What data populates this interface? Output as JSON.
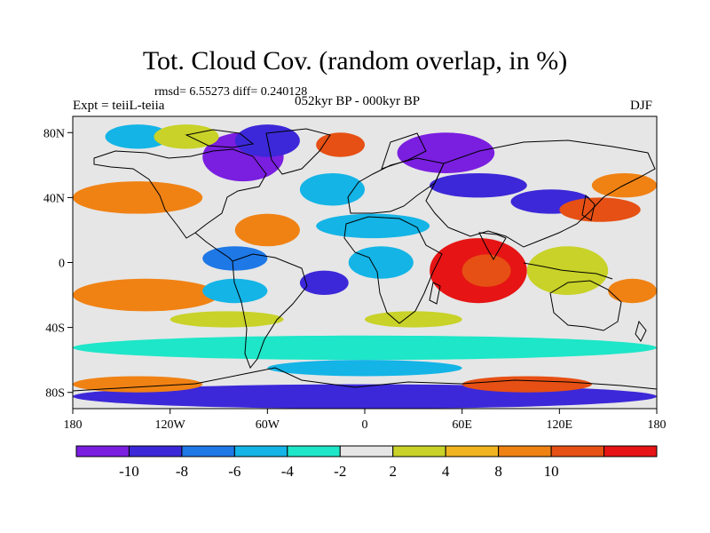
{
  "title": "Tot. Cloud Cov. (random overlap, in %)",
  "stats": "rmsd= 6.55273 diff= 0.240128",
  "left_label": "Expt = teiiL-teiia",
  "center_label": "052kyr BP - 000kyr BP",
  "right_label": "DJF",
  "chart_data": {
    "type": "heatmap",
    "x_ticks": [
      "180",
      "120W",
      "60W",
      "0",
      "60E",
      "120E",
      "180"
    ],
    "x_tick_values": [
      -180,
      -120,
      -60,
      0,
      60,
      120,
      180
    ],
    "y_ticks": [
      "80N",
      "40N",
      "0",
      "40S",
      "80S"
    ],
    "y_tick_values": [
      80,
      40,
      0,
      -40,
      -80
    ],
    "xlim": [
      -180,
      180
    ],
    "ylim": [
      -90,
      90
    ],
    "colorbar": {
      "labels": [
        "-10",
        "-8",
        "-6",
        "-4",
        "-2",
        "2",
        "4",
        "8",
        "10"
      ],
      "colors": [
        "#7a1ee0",
        "#3c28d8",
        "#1e78e6",
        "#14b4e6",
        "#1ee6c8",
        "#e6e6e6",
        "#c8d228",
        "#f0b41e",
        "#f08214",
        "#e65014",
        "#e61414"
      ]
    },
    "regions": [
      {
        "lon": [
          -100,
          -50
        ],
        "lat": [
          50,
          80
        ],
        "level": 0
      },
      {
        "lon": [
          -80,
          -40
        ],
        "lat": [
          65,
          85
        ],
        "level": 1
      },
      {
        "lon": [
          -160,
          -120
        ],
        "lat": [
          70,
          85
        ],
        "level": 3
      },
      {
        "lon": [
          -130,
          -90
        ],
        "lat": [
          70,
          85
        ],
        "level": 6
      },
      {
        "lon": [
          -30,
          0
        ],
        "lat": [
          65,
          80
        ],
        "level": 9
      },
      {
        "lon": [
          20,
          80
        ],
        "lat": [
          55,
          80
        ],
        "level": 0
      },
      {
        "lon": [
          40,
          100
        ],
        "lat": [
          40,
          55
        ],
        "level": 1
      },
      {
        "lon": [
          -40,
          0
        ],
        "lat": [
          35,
          55
        ],
        "level": 3
      },
      {
        "lon": [
          90,
          140
        ],
        "lat": [
          30,
          45
        ],
        "level": 1
      },
      {
        "lon": [
          120,
          170
        ],
        "lat": [
          25,
          40
        ],
        "level": 9
      },
      {
        "lon": [
          140,
          180
        ],
        "lat": [
          40,
          55
        ],
        "level": 8
      },
      {
        "lon": [
          -180,
          -100
        ],
        "lat": [
          30,
          50
        ],
        "level": 8
      },
      {
        "lon": [
          -180,
          -110
        ],
        "lat": [
          15,
          30
        ],
        "level": 5
      },
      {
        "lon": [
          -80,
          -40
        ],
        "lat": [
          10,
          30
        ],
        "level": 8
      },
      {
        "lon": [
          -30,
          40
        ],
        "lat": [
          15,
          30
        ],
        "level": 3
      },
      {
        "lon": [
          40,
          100
        ],
        "lat": [
          -25,
          15
        ],
        "level": 10
      },
      {
        "lon": [
          60,
          90
        ],
        "lat": [
          -15,
          5
        ],
        "level": 9
      },
      {
        "lon": [
          -100,
          -60
        ],
        "lat": [
          -5,
          10
        ],
        "level": 2
      },
      {
        "lon": [
          -40,
          -10
        ],
        "lat": [
          -20,
          -5
        ],
        "level": 1
      },
      {
        "lon": [
          -10,
          30
        ],
        "lat": [
          -10,
          10
        ],
        "level": 3
      },
      {
        "lon": [
          100,
          150
        ],
        "lat": [
          -20,
          10
        ],
        "level": 6
      },
      {
        "lon": [
          -180,
          -90
        ],
        "lat": [
          -30,
          -10
        ],
        "level": 8
      },
      {
        "lon": [
          -100,
          -60
        ],
        "lat": [
          -25,
          -10
        ],
        "level": 3
      },
      {
        "lon": [
          150,
          180
        ],
        "lat": [
          -25,
          -10
        ],
        "level": 8
      },
      {
        "lon": [
          -120,
          -50
        ],
        "lat": [
          -40,
          -30
        ],
        "level": 6
      },
      {
        "lon": [
          0,
          60
        ],
        "lat": [
          -40,
          -30
        ],
        "level": 6
      },
      {
        "lon": [
          -180,
          180
        ],
        "lat": [
          -60,
          -45
        ],
        "level": 4
      },
      {
        "lon": [
          -60,
          60
        ],
        "lat": [
          -70,
          -60
        ],
        "level": 3
      },
      {
        "lon": [
          -180,
          180
        ],
        "lat": [
          -90,
          -75
        ],
        "level": 1
      },
      {
        "lon": [
          -180,
          -100
        ],
        "lat": [
          -80,
          -70
        ],
        "level": 8
      },
      {
        "lon": [
          60,
          140
        ],
        "lat": [
          -80,
          -70
        ],
        "level": 9
      }
    ]
  }
}
